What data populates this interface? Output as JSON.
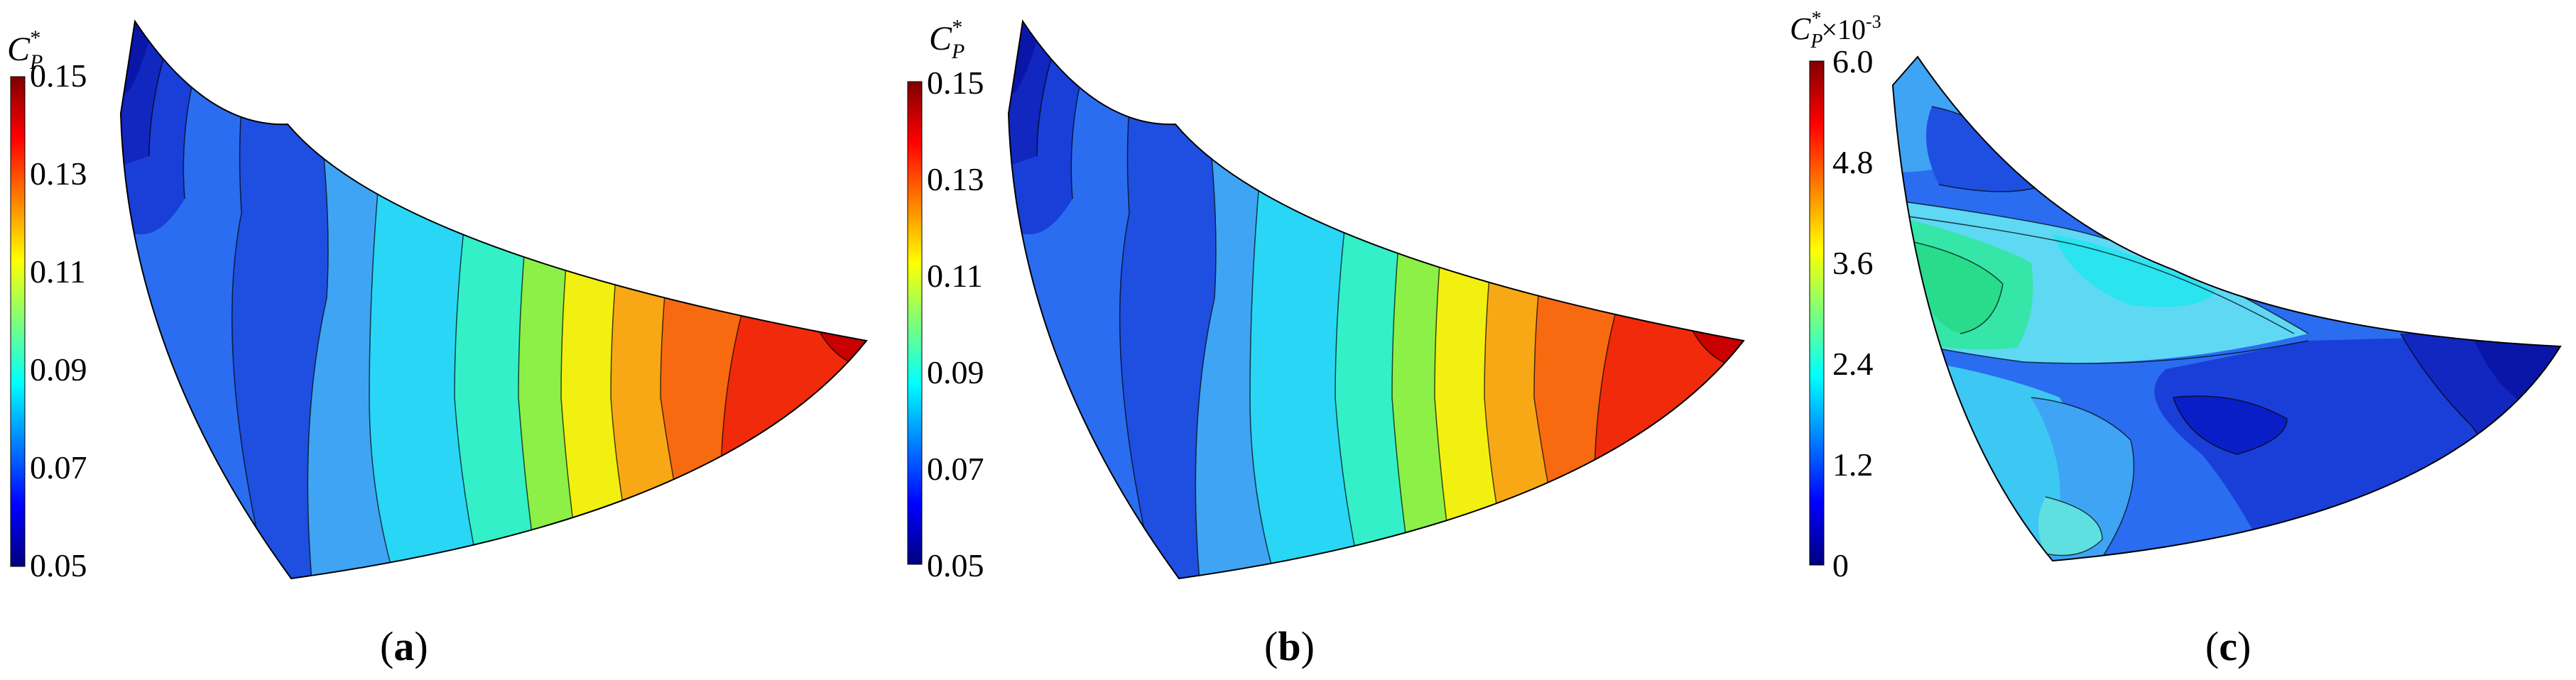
{
  "figure": {
    "panels": [
      {
        "id": "a",
        "label_open": "(",
        "label_letter": "a",
        "label_close": ")",
        "colorbar": {
          "symbol_main": "C",
          "symbol_sub": "P",
          "symbol_sup": "*",
          "scale_suffix": "",
          "ticks": [
            "0.05",
            "0.07",
            "0.09",
            "0.11",
            "0.13",
            "0.15"
          ],
          "min": 0.05,
          "max": 0.15
        }
      },
      {
        "id": "b",
        "label_open": "(",
        "label_letter": "b",
        "label_close": ")",
        "colorbar": {
          "symbol_main": "C",
          "symbol_sub": "P",
          "symbol_sup": "*",
          "scale_suffix": "",
          "ticks": [
            "0.05",
            "0.07",
            "0.09",
            "0.11",
            "0.13",
            "0.15"
          ],
          "min": 0.05,
          "max": 0.15
        }
      },
      {
        "id": "c",
        "label_open": "(",
        "label_letter": "c",
        "label_close": ")",
        "colorbar": {
          "symbol_main": "C",
          "symbol_sub": "P",
          "symbol_sup": "*",
          "scale_suffix": "×10",
          "scale_exp": "-3",
          "ticks": [
            "0",
            "1.2",
            "2.4",
            "3.6",
            "4.8",
            "6.0"
          ],
          "min": 0,
          "max": 6.0
        }
      }
    ]
  },
  "chart_data": [
    {
      "type": "heatmap",
      "panel": "(a)",
      "quantity": "C_P*",
      "colormap": "jet",
      "color_range": [
        0.05,
        0.15
      ],
      "colorbar_ticks": [
        0.05,
        0.07,
        0.09,
        0.11,
        0.13,
        0.15
      ],
      "field": {
        "min_region": "upper-left (≈0.05)",
        "max_region": "lower-right tip (≈0.15)",
        "gradient": "increases left to right in contour bands"
      }
    },
    {
      "type": "heatmap",
      "panel": "(b)",
      "quantity": "C_P*",
      "colormap": "jet",
      "color_range": [
        0.05,
        0.15
      ],
      "colorbar_ticks": [
        0.05,
        0.07,
        0.09,
        0.11,
        0.13,
        0.15
      ],
      "field": {
        "min_region": "upper-left (≈0.05)",
        "max_region": "lower-right tip (≈0.15)",
        "gradient": "increases left to right in contour bands"
      }
    },
    {
      "type": "heatmap",
      "panel": "(c)",
      "quantity": "C_P* ×10^-3",
      "colormap": "jet",
      "color_range": [
        0,
        6.0
      ],
      "colorbar_ticks": [
        0,
        1.2,
        2.4,
        3.6,
        4.8,
        6.0
      ],
      "field": {
        "min_region": "right and center-lower (≈0.3)",
        "max_region": "left-center band (≈3.2)",
        "gradient": "difference field, mostly below 3.6"
      }
    }
  ]
}
